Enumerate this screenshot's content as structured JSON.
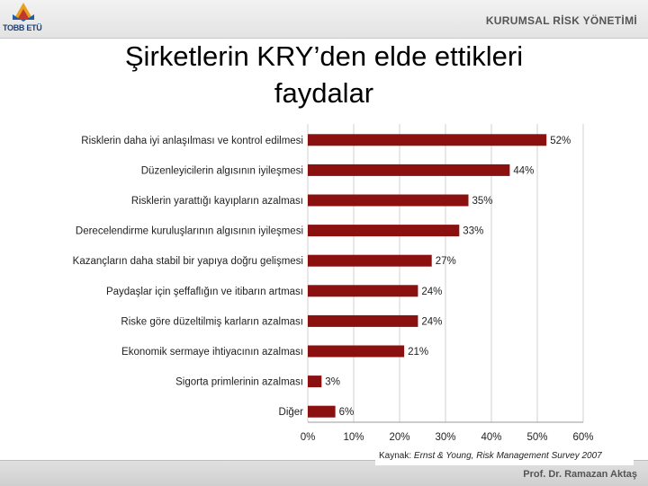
{
  "header": {
    "logo_text": "TOBB ETÜ",
    "title": "KURUMSAL RİSK YÖNETİMİ"
  },
  "slide": {
    "title_line1": "Şirketlerin KRY’den elde ettikleri",
    "title_line2": "faydalar"
  },
  "footer": {
    "source_label": "Kaynak: ",
    "source_name": "Ernst & Young, Risk Management Survey 2007",
    "author": "Prof. Dr. Ramazan Aktaş"
  },
  "colors": {
    "bar": "#8b1010",
    "grid": "#d0d0d0"
  },
  "chart_data": {
    "type": "bar",
    "orientation": "horizontal",
    "title": "",
    "xlabel": "",
    "ylabel": "",
    "categories": [
      "Risklerin daha iyi anlaşılması ve kontrol edilmesi",
      "Düzenleyicilerin algısının iyileşmesi",
      "Risklerin yarattığı kayıpların azalması",
      "Derecelendirme kuruluşlarının algısının iyileşmesi",
      "Kazançların daha stabil bir yapıya doğru gelişmesi",
      "Paydaşlar için şeffaflığın ve itibarın artması",
      "Riske göre düzeltilmiş karların azalması",
      "Ekonomik sermaye ihtiyacının azalması",
      "Sigorta primlerinin azalması",
      "Diğer"
    ],
    "values": [
      52,
      44,
      35,
      33,
      27,
      24,
      24,
      21,
      3,
      6
    ],
    "value_labels": [
      "52%",
      "44%",
      "35%",
      "33%",
      "27%",
      "24%",
      "24%",
      "21%",
      "3%",
      "6%"
    ],
    "xlim": [
      0,
      60
    ],
    "xticks": [
      0,
      10,
      20,
      30,
      40,
      50,
      60
    ],
    "xtick_labels": [
      "0%",
      "10%",
      "20%",
      "30%",
      "40%",
      "50%",
      "60%"
    ],
    "grid": true
  }
}
